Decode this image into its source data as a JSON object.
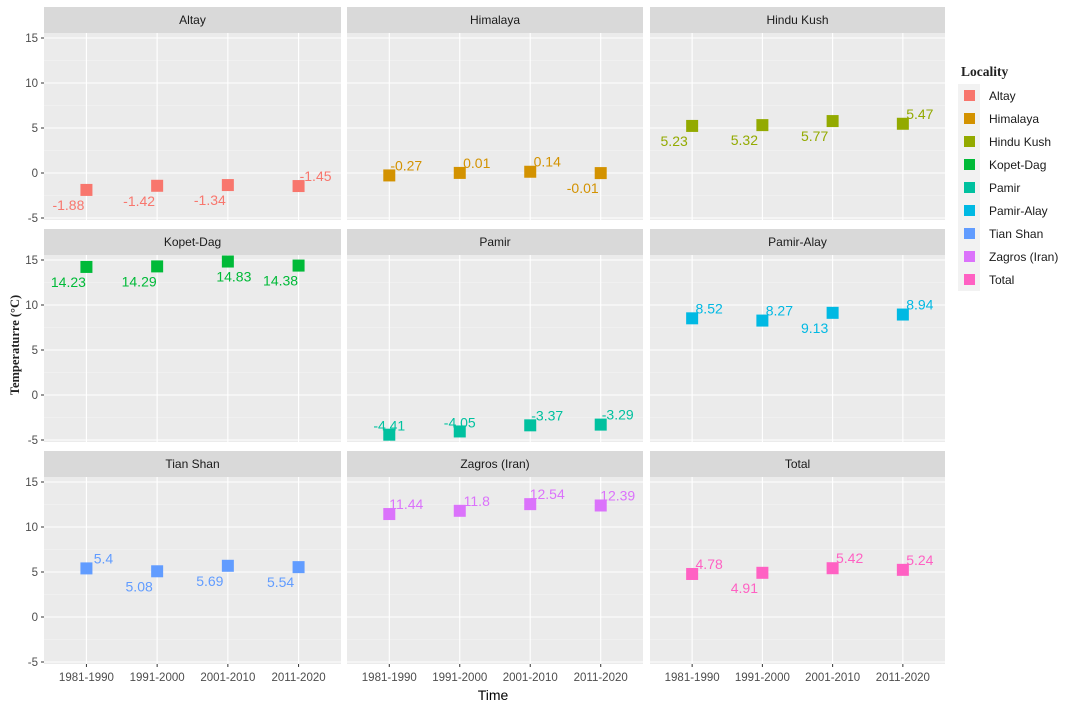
{
  "chart_data": {
    "type": "scatter",
    "facet": "wrap 3x3",
    "xlabel": "Time",
    "ylabel": "Temperaturre (°C)",
    "ylim": [
      -5.3,
      15.6
    ],
    "yticks": [
      -5,
      0,
      5,
      10,
      15
    ],
    "categories": [
      "1981-1990",
      "1991-2000",
      "2001-2010",
      "2011-2020"
    ],
    "legend": {
      "title": "Locality",
      "position": "right"
    },
    "series": [
      {
        "name": "Altay",
        "label": "Altay",
        "color": "#F8766D",
        "values": [
          -1.88,
          -1.42,
          -1.34,
          -1.45
        ],
        "labels": [
          "-1.88",
          "-1.42",
          "-1.34",
          "-1.45"
        ]
      },
      {
        "name": "Himalaya",
        "label": "Himalaya",
        "color": "#D39200",
        "values": [
          -0.27,
          0.01,
          0.14,
          -0.01
        ],
        "labels": [
          "-0.27",
          "0.01",
          "0.14",
          "-0.01"
        ]
      },
      {
        "name": "Hindu Kush",
        "label": "Hindu Kush",
        "color": "#93AA00",
        "values": [
          5.23,
          5.32,
          5.77,
          5.47
        ],
        "labels": [
          "5.23",
          "5.32",
          "5.77",
          "5.47"
        ]
      },
      {
        "name": "Kopet-Dag",
        "label": "Kopet-Dag",
        "color": "#00BA38",
        "values": [
          14.23,
          14.29,
          14.83,
          14.38
        ],
        "labels": [
          "14.23",
          "14.29",
          "14.83",
          "14.38"
        ]
      },
      {
        "name": "Pamir",
        "label": "Pamir",
        "color": "#00C19F",
        "values": [
          -4.41,
          -4.05,
          -3.37,
          -3.29
        ],
        "labels": [
          "-4.41",
          "-4.05",
          "-3.37",
          "-3.29"
        ]
      },
      {
        "name": "Pamir-Alay",
        "label": "Pamir-Alay",
        "color": "#00B9E3",
        "values": [
          8.52,
          8.27,
          9.13,
          8.94
        ],
        "labels": [
          "8.52",
          "8.27",
          "9.13",
          "8.94"
        ]
      },
      {
        "name": "Tian Shan",
        "label": "Tian Shan",
        "color": "#619CFF",
        "values": [
          5.4,
          5.08,
          5.69,
          5.54
        ],
        "labels": [
          "5.4",
          "5.08",
          "5.69",
          "5.54"
        ]
      },
      {
        "name": "Zagros (Iran)",
        "label": "Zagros (Iran)",
        "color": "#DB72FB",
        "values": [
          11.44,
          11.8,
          12.54,
          12.39
        ],
        "labels": [
          "11.44",
          "11.8",
          "12.54",
          "12.39"
        ]
      },
      {
        "name": "Total",
        "label": " Total",
        "color": "#FF61C3",
        "values": [
          4.78,
          4.91,
          5.42,
          5.24
        ],
        "labels": [
          "4.78",
          "4.91",
          "5.42",
          "5.24"
        ]
      }
    ]
  }
}
